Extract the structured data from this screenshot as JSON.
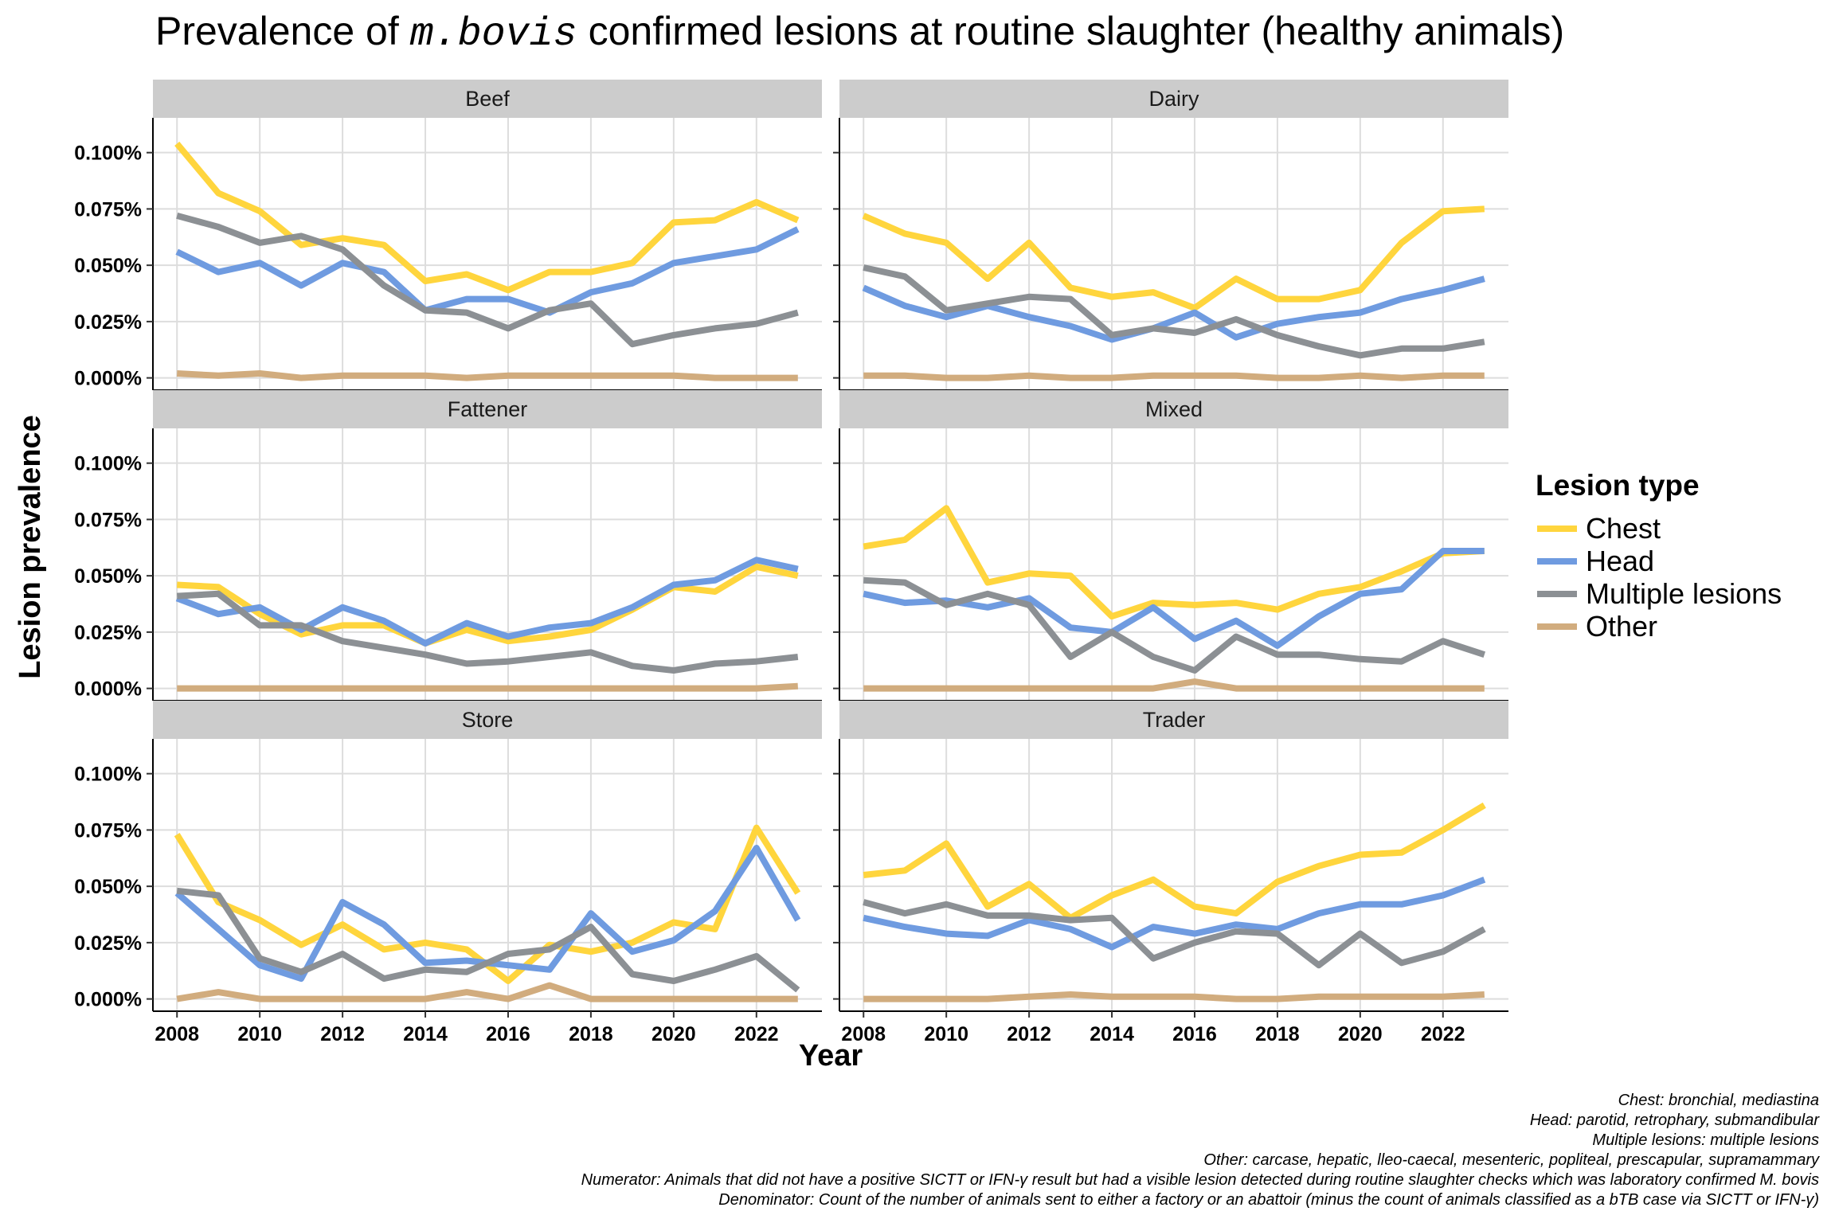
{
  "title": {
    "prefix": "Prevalence of ",
    "italic": "m.bovis",
    "suffix": " confirmed lesions at routine slaughter (healthy animals)"
  },
  "legend": {
    "title": "Lesion type",
    "position": "right"
  },
  "captions": [
    "Chest: bronchial, mediastina",
    "Head: parotid, retrophary, submandibular",
    "Multiple lesions: multiple lesions",
    "Other: carcase, hepatic, lleo-caecal, mesenteric, popliteal, prescapular, supramammary",
    "Numerator: Animals that did not have a positive SICTT or IFN-γ result but had a visible lesion detected during routine slaughter checks which was laboratory confirmed M. bovis",
    "Denominator: Count of the number of animals sent to either a factory or an abattoir (minus the count of animals classified as a bTB case via SICTT or IFN-γ)"
  ],
  "chart_data": {
    "type": "line",
    "xlabel": "Year",
    "ylabel": "Lesion prevalence",
    "xlim": [
      2008,
      2023
    ],
    "ylim": [
      0,
      0.11
    ],
    "x_ticks": [
      2008,
      2010,
      2012,
      2014,
      2016,
      2018,
      2020,
      2022
    ],
    "y_ticks": [
      0,
      0.025,
      0.05,
      0.075,
      0.1
    ],
    "y_tick_labels": [
      "0.000%",
      "0.025%",
      "0.050%",
      "0.075%",
      "0.100%"
    ],
    "grid": true,
    "x": [
      2008,
      2009,
      2010,
      2011,
      2012,
      2013,
      2014,
      2015,
      2016,
      2017,
      2018,
      2019,
      2020,
      2021,
      2022,
      2023
    ],
    "series_styles": [
      {
        "name": "Chest",
        "color": "#FFD53D"
      },
      {
        "name": "Head",
        "color": "#6F9BE0"
      },
      {
        "name": "Multiple lesions",
        "color": "#8C9094"
      },
      {
        "name": "Other",
        "color": "#D1AC7E"
      }
    ],
    "panels": [
      {
        "name": "Beef",
        "series": [
          {
            "name": "Chest",
            "values": [
              0.104,
              0.082,
              0.074,
              0.059,
              0.062,
              0.059,
              0.043,
              0.046,
              0.039,
              0.047,
              0.047,
              0.051,
              0.069,
              0.07,
              0.078,
              0.07
            ]
          },
          {
            "name": "Head",
            "values": [
              0.056,
              0.047,
              0.051,
              0.041,
              0.051,
              0.047,
              0.03,
              0.035,
              0.035,
              0.029,
              0.038,
              0.042,
              0.051,
              0.054,
              0.057,
              0.066
            ]
          },
          {
            "name": "Multiple lesions",
            "values": [
              0.072,
              0.067,
              0.06,
              0.063,
              0.057,
              0.041,
              0.03,
              0.029,
              0.022,
              0.03,
              0.033,
              0.015,
              0.019,
              0.022,
              0.024,
              0.029
            ]
          },
          {
            "name": "Other",
            "values": [
              0.002,
              0.001,
              0.002,
              0.0,
              0.001,
              0.001,
              0.001,
              0.0,
              0.001,
              0.001,
              0.001,
              0.001,
              0.001,
              0.0,
              0.0,
              0.0
            ]
          }
        ]
      },
      {
        "name": "Dairy",
        "series": [
          {
            "name": "Chest",
            "values": [
              0.072,
              0.064,
              0.06,
              0.044,
              0.06,
              0.04,
              0.036,
              0.038,
              0.031,
              0.044,
              0.035,
              0.035,
              0.039,
              0.06,
              0.074,
              0.075
            ]
          },
          {
            "name": "Head",
            "values": [
              0.04,
              0.032,
              0.027,
              0.032,
              0.027,
              0.023,
              0.017,
              0.022,
              0.029,
              0.018,
              0.024,
              0.027,
              0.029,
              0.035,
              0.039,
              0.044
            ]
          },
          {
            "name": "Multiple lesions",
            "values": [
              0.049,
              0.045,
              0.03,
              0.033,
              0.036,
              0.035,
              0.019,
              0.022,
              0.02,
              0.026,
              0.019,
              0.014,
              0.01,
              0.013,
              0.013,
              0.016
            ]
          },
          {
            "name": "Other",
            "values": [
              0.001,
              0.001,
              0.0,
              0.0,
              0.001,
              0.0,
              0.0,
              0.001,
              0.001,
              0.001,
              0.0,
              0.0,
              0.001,
              0.0,
              0.001,
              0.001
            ]
          }
        ]
      },
      {
        "name": "Fattener",
        "series": [
          {
            "name": "Chest",
            "values": [
              0.046,
              0.045,
              0.033,
              0.024,
              0.028,
              0.028,
              0.02,
              0.026,
              0.021,
              0.023,
              0.026,
              0.035,
              0.045,
              0.043,
              0.054,
              0.05
            ]
          },
          {
            "name": "Head",
            "values": [
              0.04,
              0.033,
              0.036,
              0.026,
              0.036,
              0.03,
              0.02,
              0.029,
              0.023,
              0.027,
              0.029,
              0.036,
              0.046,
              0.048,
              0.057,
              0.053
            ]
          },
          {
            "name": "Multiple lesions",
            "values": [
              0.041,
              0.042,
              0.028,
              0.028,
              0.021,
              0.018,
              0.015,
              0.011,
              0.012,
              0.014,
              0.016,
              0.01,
              0.008,
              0.011,
              0.012,
              0.014
            ]
          },
          {
            "name": "Other",
            "values": [
              0.0,
              0.0,
              0.0,
              0.0,
              0.0,
              0.0,
              0.0,
              0.0,
              0.0,
              0.0,
              0.0,
              0.0,
              0.0,
              0.0,
              0.0,
              0.001
            ]
          }
        ]
      },
      {
        "name": "Mixed",
        "series": [
          {
            "name": "Chest",
            "values": [
              0.063,
              0.066,
              0.08,
              0.047,
              0.051,
              0.05,
              0.032,
              0.038,
              0.037,
              0.038,
              0.035,
              0.042,
              0.045,
              0.052,
              0.06,
              0.061
            ]
          },
          {
            "name": "Head",
            "values": [
              0.042,
              0.038,
              0.039,
              0.036,
              0.04,
              0.027,
              0.025,
              0.036,
              0.022,
              0.03,
              0.019,
              0.032,
              0.042,
              0.044,
              0.061,
              0.061
            ]
          },
          {
            "name": "Multiple lesions",
            "values": [
              0.048,
              0.047,
              0.037,
              0.042,
              0.037,
              0.014,
              0.025,
              0.014,
              0.008,
              0.023,
              0.015,
              0.015,
              0.013,
              0.012,
              0.021,
              0.015
            ]
          },
          {
            "name": "Other",
            "values": [
              0.0,
              0.0,
              0.0,
              0.0,
              0.0,
              0.0,
              0.0,
              0.0,
              0.003,
              0.0,
              0.0,
              0.0,
              0.0,
              0.0,
              0.0,
              0.0
            ]
          }
        ]
      },
      {
        "name": "Store",
        "series": [
          {
            "name": "Chest",
            "values": [
              0.073,
              0.043,
              0.035,
              0.024,
              0.033,
              0.022,
              0.025,
              0.022,
              0.008,
              0.024,
              0.021,
              0.025,
              0.034,
              0.031,
              0.076,
              0.047
            ]
          },
          {
            "name": "Head",
            "values": [
              0.047,
              0.031,
              0.015,
              0.009,
              0.043,
              0.033,
              0.016,
              0.017,
              0.015,
              0.013,
              0.038,
              0.021,
              0.026,
              0.039,
              0.067,
              0.035
            ]
          },
          {
            "name": "Multiple lesions",
            "values": [
              0.048,
              0.046,
              0.018,
              0.012,
              0.02,
              0.009,
              0.013,
              0.012,
              0.02,
              0.022,
              0.032,
              0.011,
              0.008,
              0.013,
              0.019,
              0.004
            ]
          },
          {
            "name": "Other",
            "values": [
              0.0,
              0.003,
              0.0,
              0.0,
              0.0,
              0.0,
              0.0,
              0.003,
              0.0,
              0.006,
              0.0,
              0.0,
              0.0,
              0.0,
              0.0,
              0.0
            ]
          }
        ]
      },
      {
        "name": "Trader",
        "series": [
          {
            "name": "Chest",
            "values": [
              0.055,
              0.057,
              0.069,
              0.041,
              0.051,
              0.036,
              0.046,
              0.053,
              0.041,
              0.038,
              0.052,
              0.059,
              0.064,
              0.065,
              0.075,
              0.086
            ]
          },
          {
            "name": "Head",
            "values": [
              0.036,
              0.032,
              0.029,
              0.028,
              0.035,
              0.031,
              0.023,
              0.032,
              0.029,
              0.033,
              0.031,
              0.038,
              0.042,
              0.042,
              0.046,
              0.053
            ]
          },
          {
            "name": "Multiple lesions",
            "values": [
              0.043,
              0.038,
              0.042,
              0.037,
              0.037,
              0.035,
              0.036,
              0.018,
              0.025,
              0.03,
              0.029,
              0.015,
              0.029,
              0.016,
              0.021,
              0.031
            ]
          },
          {
            "name": "Other",
            "values": [
              0.0,
              0.0,
              0.0,
              0.0,
              0.001,
              0.002,
              0.001,
              0.001,
              0.001,
              0.0,
              0.0,
              0.001,
              0.001,
              0.001,
              0.001,
              0.002
            ]
          }
        ]
      }
    ]
  }
}
